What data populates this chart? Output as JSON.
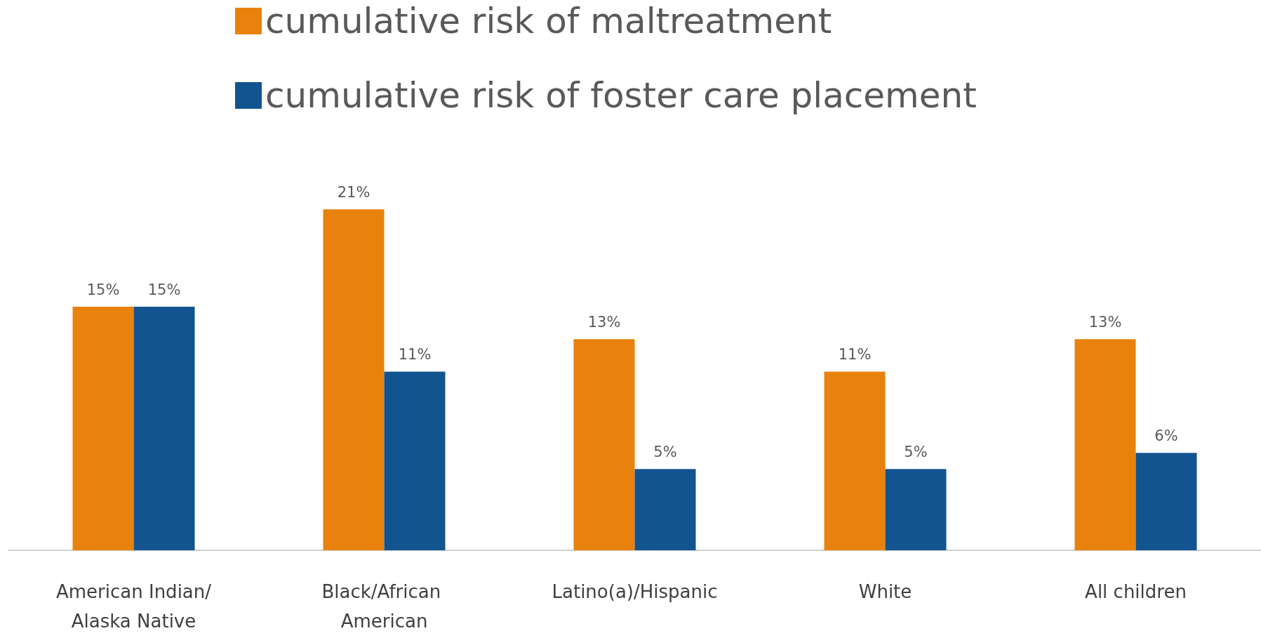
{
  "chart_data": {
    "type": "bar",
    "categories": [
      "American Indian/Alaska Native",
      "Black/African American",
      "Latino(a)/Hispanic",
      "White",
      "All children"
    ],
    "series": [
      {
        "name": "cumulative risk of maltreatment",
        "color": "#e8820c",
        "values": [
          15,
          21,
          13,
          11,
          13
        ],
        "value_labels": [
          "15%",
          "21%",
          "13%",
          "11%",
          "13%"
        ]
      },
      {
        "name": "cumulative risk of foster care placement",
        "color": "#12548f",
        "values": [
          15,
          11,
          5,
          5,
          6
        ],
        "value_labels": [
          "15%",
          "11%",
          "5%",
          "5%",
          "6%"
        ]
      }
    ],
    "legend": "top",
    "grid": false
  }
}
